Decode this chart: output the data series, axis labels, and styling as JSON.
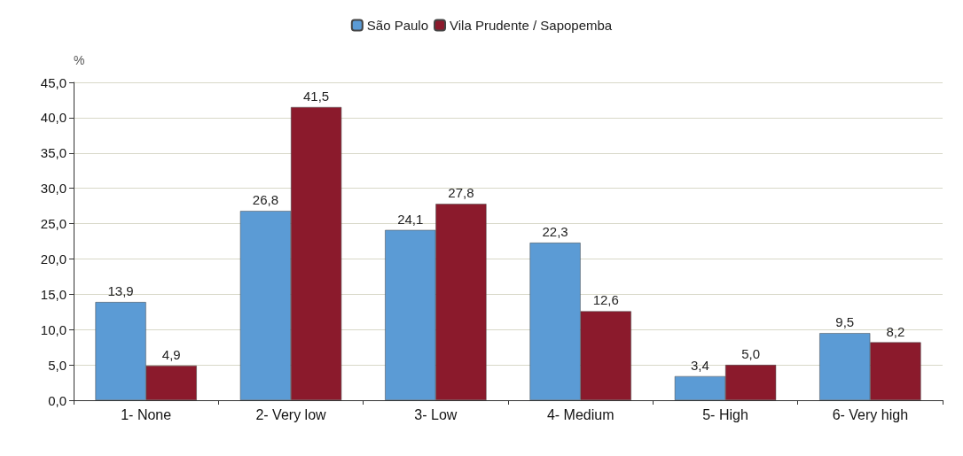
{
  "chart_data": {
    "type": "bar",
    "ylabel": "%",
    "categories": [
      "1- None",
      "2- Very low",
      "3- Low",
      "4- Medium",
      "5- High",
      "6- Very high"
    ],
    "series": [
      {
        "name": "São Paulo",
        "color": "#5b9bd5",
        "values": [
          13.9,
          26.8,
          24.1,
          22.3,
          3.4,
          9.5
        ],
        "value_labels": [
          "13,9",
          "26,8",
          "24,1",
          "22,3",
          "3,4",
          "9,5"
        ]
      },
      {
        "name": "Vila Prudente / Sapopemba",
        "color": "#8b1a2c",
        "values": [
          4.9,
          41.5,
          27.8,
          12.6,
          5.0,
          8.2
        ],
        "value_labels": [
          "4,9",
          "41,5",
          "27,8",
          "12,6",
          "5,0",
          "8,2"
        ]
      }
    ],
    "ylim": [
      0,
      45
    ],
    "yticks": [
      {
        "value": 0,
        "label": "0,0"
      },
      {
        "value": 5,
        "label": "5,0"
      },
      {
        "value": 10,
        "label": "10,0"
      },
      {
        "value": 15,
        "label": "15,0"
      },
      {
        "value": 20,
        "label": "20,0"
      },
      {
        "value": 25,
        "label": "25,0"
      },
      {
        "value": 30,
        "label": "30,0"
      },
      {
        "value": 35,
        "label": "35,0"
      },
      {
        "value": 40,
        "label": "40,0"
      },
      {
        "value": 45,
        "label": "45,0"
      }
    ],
    "grid": "y",
    "legend": "top"
  }
}
